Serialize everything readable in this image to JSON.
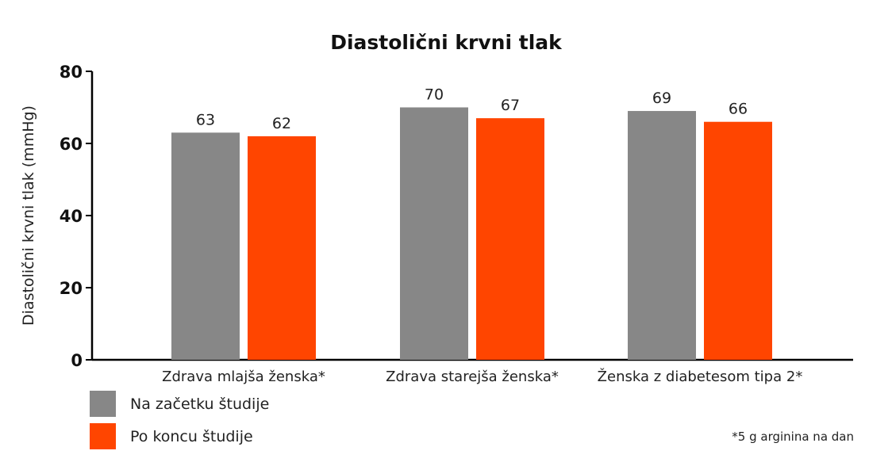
{
  "chart_data": {
    "type": "bar",
    "title": "Diastolični krvni tlak",
    "ylabel": "Diastolični krvni tlak (mmHg)",
    "xlabel": "",
    "ylim": [
      0,
      80
    ],
    "yticks": [
      0,
      20,
      40,
      60,
      80
    ],
    "grid": false,
    "categories": [
      "Zdrava mlajša ženska*",
      "Zdrava starejša ženska*",
      "Ženska z diabetesom tipa 2*"
    ],
    "series": [
      {
        "name": "Na začetku študije",
        "color": "#878787",
        "values": [
          63,
          70,
          69
        ]
      },
      {
        "name": "Po koncu študije",
        "color": "#ff4500",
        "values": [
          62,
          67,
          66
        ]
      }
    ],
    "legend_position": "bottom-left",
    "footnote": "*5 g arginina na dan"
  }
}
